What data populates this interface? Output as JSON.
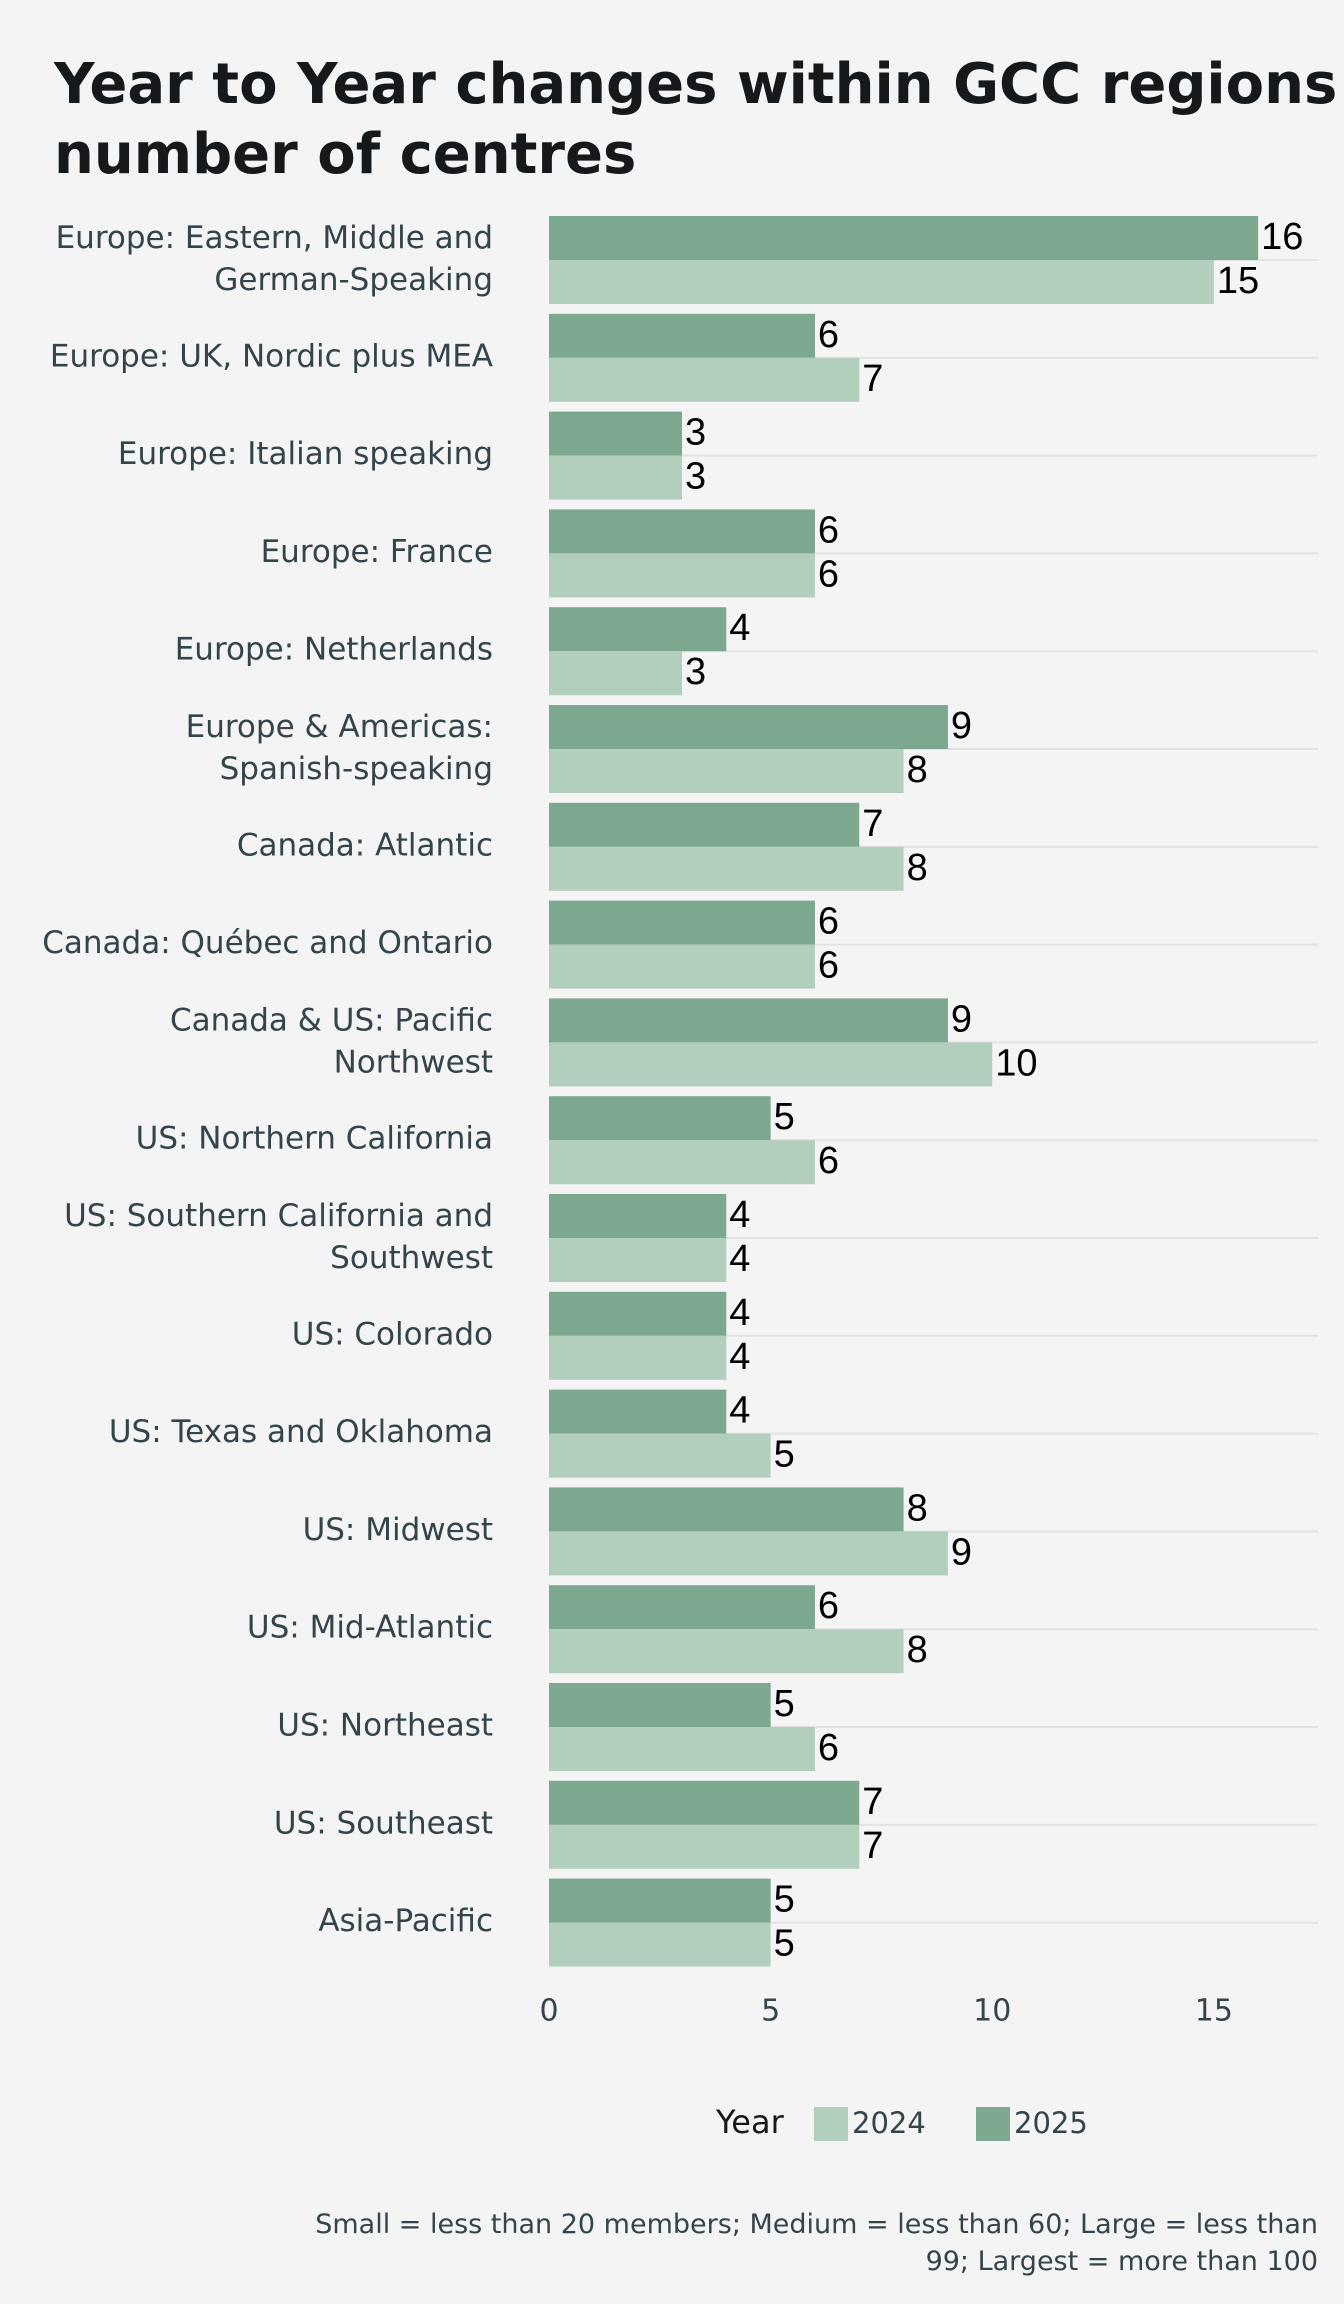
{
  "chart_data": {
    "type": "bar",
    "orientation": "horizontal",
    "title": "Year to Year changes within GCC regions\nnumber of centres",
    "categories": [
      "Europe: Eastern, Middle and\nGerman-Speaking",
      "Europe: UK, Nordic plus MEA",
      "Europe: Italian speaking",
      "Europe: France",
      "Europe: Netherlands",
      "Europe & Americas:\nSpanish-speaking",
      "Canada: Atlantic",
      "Canada: Québec and Ontario",
      "Canada & US: Pacific\nNorthwest",
      "US: Northern California",
      "US: Southern California and\nSouthwest",
      "US: Colorado",
      "US: Texas and Oklahoma",
      "US: Midwest",
      "US: Mid-Atlantic",
      "US: Northeast",
      "US: Southeast",
      "Asia-Pacific"
    ],
    "series": [
      {
        "name": "2025",
        "color": "#7ba88e",
        "values": [
          16,
          6,
          3,
          6,
          4,
          9,
          7,
          6,
          9,
          5,
          4,
          4,
          4,
          8,
          6,
          5,
          7,
          5
        ]
      },
      {
        "name": "2024",
        "color": "#b2cebd",
        "values": [
          15,
          7,
          3,
          6,
          3,
          8,
          8,
          6,
          10,
          6,
          4,
          4,
          5,
          9,
          8,
          6,
          7,
          5
        ]
      }
    ],
    "xlim": [
      0,
      17.35
    ],
    "xticks": [
      0,
      5,
      10,
      15
    ],
    "legend_title": "Year",
    "legend_position": "bottom",
    "grid": true,
    "caption": "Small = less than 20 members; Medium = less than 60; Large = less than\n99; Largest = more than 100"
  }
}
